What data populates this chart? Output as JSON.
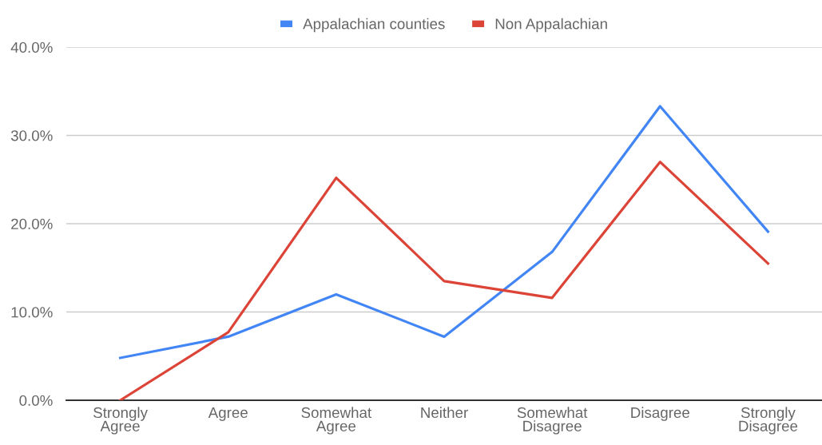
{
  "chart_data": {
    "type": "line",
    "categories": [
      "Strongly\nAgree",
      "Agree",
      "Somewhat\nAgree",
      "Neither",
      "Somewhat\nDisagree",
      "Disagree",
      "Strongly\nDisagree"
    ],
    "series": [
      {
        "name": "Appalachian counties",
        "color": "#4285f4",
        "values": [
          4.8,
          7.2,
          12.0,
          7.2,
          16.8,
          33.3,
          19.1
        ]
      },
      {
        "name": "Non Appalachian",
        "color": "#db4437",
        "values": [
          0.0,
          7.7,
          25.2,
          13.5,
          11.6,
          27.0,
          15.5
        ]
      }
    ],
    "ylim": [
      0,
      40
    ],
    "yticks": [
      {
        "value": 0,
        "label": "0.0%"
      },
      {
        "value": 10,
        "label": "10.0%"
      },
      {
        "value": 20,
        "label": "20.0%"
      },
      {
        "value": 30,
        "label": "30.0%"
      },
      {
        "value": 40,
        "label": "40.0%"
      }
    ],
    "grid": "y",
    "legend": "top",
    "marker": "none",
    "line_style": "solid"
  }
}
